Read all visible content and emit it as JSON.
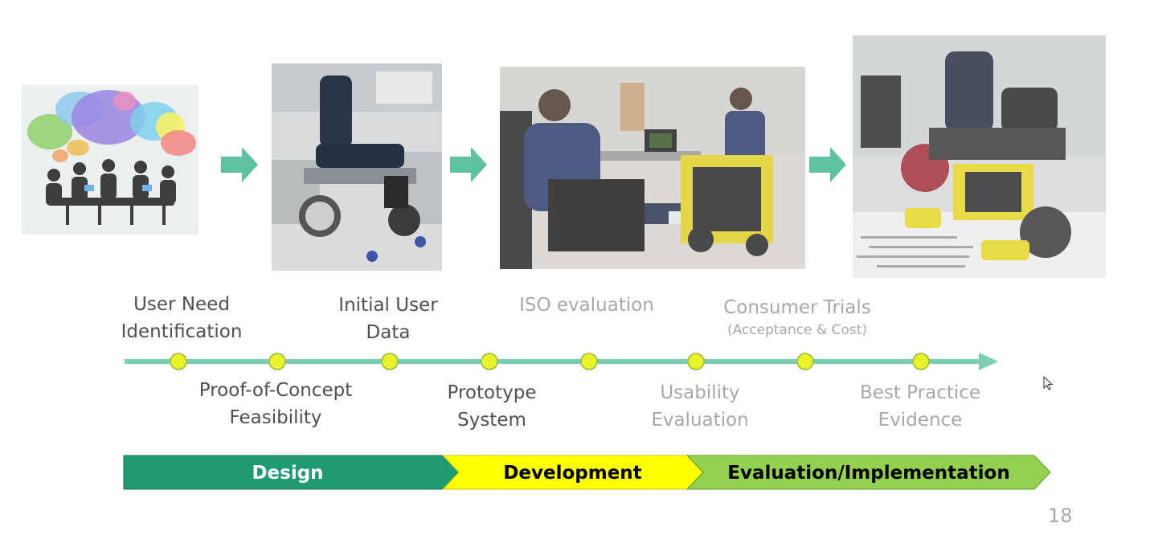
{
  "timeline": {
    "labels_top": [
      {
        "lines": [
          "User Need",
          "Identification"
        ],
        "tone": "dark"
      },
      {
        "lines": [
          "Initial User",
          "Data"
        ],
        "tone": "dark"
      },
      {
        "lines": [
          "ISO evaluation"
        ],
        "tone": "light"
      },
      {
        "main": "Consumer Trials",
        "sub": "(Acceptance & Cost)",
        "tone": "light"
      }
    ],
    "labels_bottom": [
      {
        "lines": [
          "Proof-of-Concept",
          "Feasibility"
        ],
        "tone": "dark"
      },
      {
        "lines": [
          "Prototype",
          "System"
        ],
        "tone": "dark"
      },
      {
        "lines": [
          "Usability",
          "Evaluation"
        ],
        "tone": "light"
      },
      {
        "lines": [
          "Best Practice",
          "Evidence"
        ],
        "tone": "light"
      }
    ],
    "milestone_count": 8
  },
  "phases": [
    {
      "label": "Design",
      "color": "#1f9a72",
      "text_color": "#ffffff"
    },
    {
      "label": "Development",
      "color": "#ffff00",
      "text_color": "#000000"
    },
    {
      "label": "Evaluation/Implementation",
      "color": "#92d050",
      "text_color": "#000000"
    }
  ],
  "colors": {
    "arrow": "#5cc2a0",
    "line": "#7ccdb4",
    "dot": "#e8f32a",
    "dot_border": "#98b83a"
  },
  "page_number": "18"
}
